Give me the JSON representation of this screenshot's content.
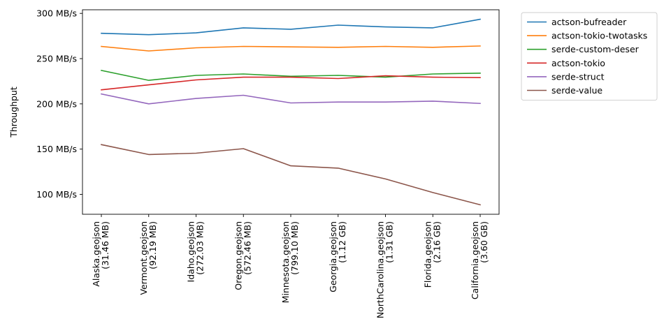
{
  "chart_data": {
    "type": "line",
    "title": "",
    "xlabel": "",
    "ylabel": "Throughput",
    "ylim": [
      78,
      304
    ],
    "yticks": [
      {
        "value": 100,
        "label": "100 MB/s"
      },
      {
        "value": 150,
        "label": "150 MB/s"
      },
      {
        "value": 200,
        "label": "200 MB/s"
      },
      {
        "value": 250,
        "label": "250 MB/s"
      },
      {
        "value": 300,
        "label": "300 MB/s"
      }
    ],
    "categories": [
      {
        "name": "Alaska.geojson",
        "size": "(31.46 MB)"
      },
      {
        "name": "Vermont.geojson",
        "size": "(92.19 MB)"
      },
      {
        "name": "Idaho.geojson",
        "size": "(272.03 MB)"
      },
      {
        "name": "Oregon.geojson",
        "size": "(572.46 MB)"
      },
      {
        "name": "Minnesota.geojson",
        "size": "(799.10 MB)"
      },
      {
        "name": "Georgia.geojson",
        "size": "(1.12 GB)"
      },
      {
        "name": "NorthCarolina.geojson",
        "size": "(1.31 GB)"
      },
      {
        "name": "Florida.geojson",
        "size": "(2.16 GB)"
      },
      {
        "name": "California.geojson",
        "size": "(3.60 GB)"
      }
    ],
    "legend_position": "outside-top-right",
    "series": [
      {
        "name": "actson-bufreader",
        "color": "#1f77b4",
        "values": [
          278,
          276.5,
          278.5,
          284,
          282.5,
          287,
          285,
          284,
          293.5
        ]
      },
      {
        "name": "actson-tokio-twotasks",
        "color": "#ff7f0e",
        "values": [
          263.5,
          258.5,
          262,
          263.5,
          263,
          262.5,
          263.5,
          262.5,
          264
        ]
      },
      {
        "name": "serde-custom-deser",
        "color": "#2ca02c",
        "values": [
          237,
          226,
          231.5,
          233,
          230.5,
          231.5,
          229.5,
          233,
          234
        ]
      },
      {
        "name": "actson-tokio",
        "color": "#d62728",
        "values": [
          215.5,
          221,
          226.5,
          229.5,
          229.5,
          228,
          231,
          229.5,
          229
        ]
      },
      {
        "name": "serde-struct",
        "color": "#9467bd",
        "values": [
          211,
          200,
          206,
          209.5,
          201,
          202,
          202,
          203,
          200.5
        ]
      },
      {
        "name": "serde-value",
        "color": "#8c564b",
        "values": [
          155,
          144,
          145.5,
          150.5,
          131.5,
          129,
          117,
          102,
          88.5
        ]
      }
    ]
  }
}
